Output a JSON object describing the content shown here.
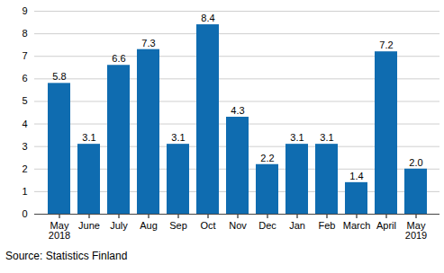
{
  "chart_data": {
    "type": "bar",
    "caption": "Source: Statistics Finland",
    "categories": [
      "May\n2018",
      "June",
      "July",
      "Aug",
      "Sep",
      "Oct",
      "Nov",
      "Dec",
      "Jan",
      "Feb",
      "March",
      "April",
      "May\n2019"
    ],
    "values": [
      5.8,
      3.1,
      6.6,
      7.3,
      3.1,
      8.4,
      4.3,
      2.2,
      3.1,
      3.1,
      1.4,
      7.2,
      2.0
    ],
    "value_labels": [
      "5.8",
      "3.1",
      "6.6",
      "7.3",
      "3.1",
      "8.4",
      "4.3",
      "2.2",
      "3.1",
      "3.1",
      "1.4",
      "7.2",
      "2.0"
    ],
    "color": "#0f6cb0",
    "ylim": [
      0,
      9
    ],
    "yticks": [
      0,
      1,
      2,
      3,
      4,
      5,
      6,
      7,
      8,
      9
    ],
    "grid": true,
    "data_labels": true
  }
}
